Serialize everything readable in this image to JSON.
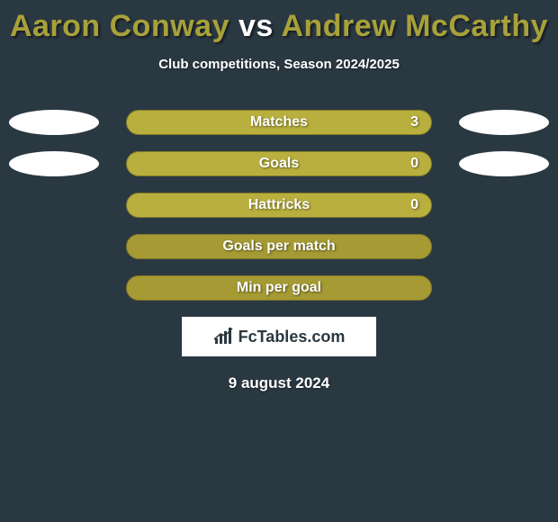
{
  "title": {
    "player1": "Aaron Conway",
    "vs": "vs",
    "player2": "Andrew McCarthy",
    "color1": "#a8a13a",
    "color_vs": "#ffffff",
    "color2": "#a8a13a"
  },
  "subtitle": "Club competitions, Season 2024/2025",
  "bar_style": {
    "track_color": "#a59a33",
    "track_border": "#847b28",
    "fill_color": "#b9af3e",
    "height": 28,
    "radius": 14
  },
  "rows": [
    {
      "label": "Matches",
      "value_right": "3",
      "show_left_ellipse": true,
      "show_right_ellipse": true,
      "fill_pct": 100
    },
    {
      "label": "Goals",
      "value_right": "0",
      "show_left_ellipse": true,
      "show_right_ellipse": true,
      "fill_pct": 100
    },
    {
      "label": "Hattricks",
      "value_right": "0",
      "show_left_ellipse": false,
      "show_right_ellipse": false,
      "fill_pct": 100
    },
    {
      "label": "Goals per match",
      "value_right": "",
      "show_left_ellipse": false,
      "show_right_ellipse": false,
      "fill_pct": 0
    },
    {
      "label": "Min per goal",
      "value_right": "",
      "show_left_ellipse": false,
      "show_right_ellipse": false,
      "fill_pct": 0
    }
  ],
  "logo": {
    "text": "FcTables.com"
  },
  "date": "9 august 2024",
  "colors": {
    "background": "#2a3842",
    "ellipse": "#ffffff",
    "text": "#ffffff"
  }
}
